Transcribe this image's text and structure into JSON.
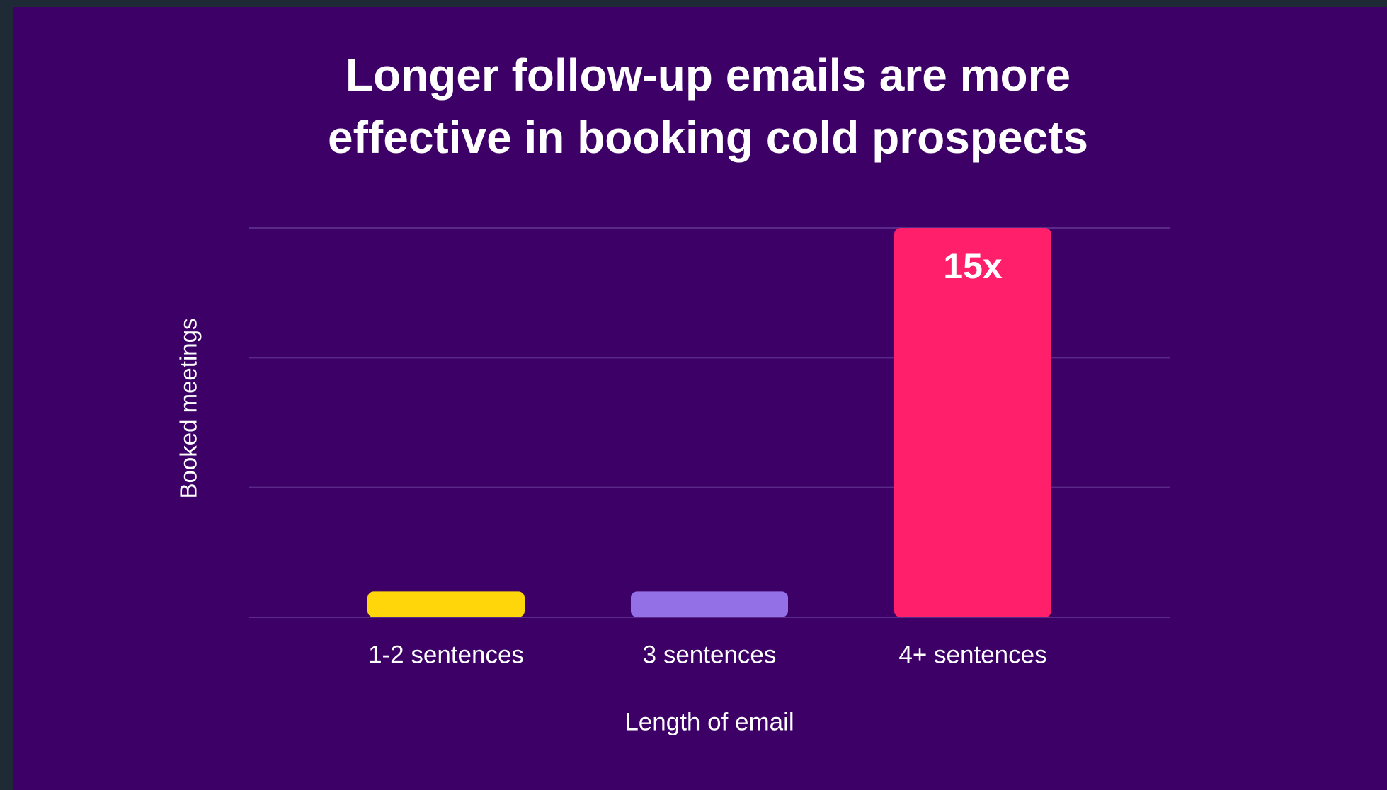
{
  "chart_data": {
    "type": "bar",
    "title": "Longer follow-up emails are more effective in booking cold prospects",
    "x_label": "Length of email",
    "y_label": "Booked meetings",
    "categories": [
      "1-2 sentences",
      "3 sentences",
      "4+ sentences"
    ],
    "values": [
      1,
      1,
      15
    ],
    "value_labels": [
      null,
      null,
      "15x"
    ],
    "colors": [
      "#ffd60a",
      "#9370e6",
      "#ff1f6a"
    ],
    "ylim": [
      0,
      15
    ],
    "yticks": [
      0,
      5,
      10,
      15
    ],
    "grid": true
  }
}
